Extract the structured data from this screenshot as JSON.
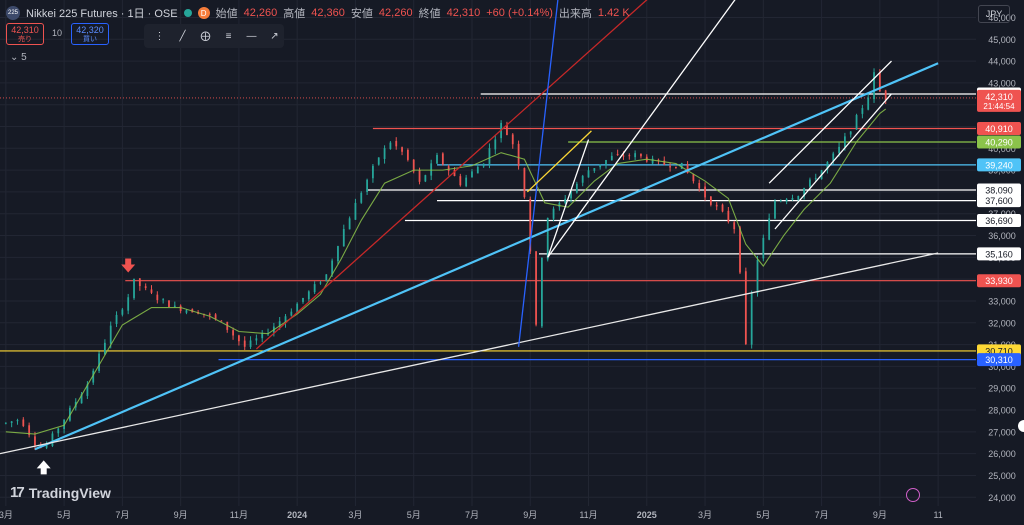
{
  "header": {
    "title": "Nikkei 225 Futures · 1日 · OSE",
    "logo_text": "225",
    "d_badge": "D",
    "open_label": "始値",
    "open_value": "42,260",
    "high_label": "高値",
    "high_value": "42,360",
    "low_label": "安値",
    "low_value": "42,260",
    "close_label": "終値",
    "close_value": "42,310",
    "change": "+60 (+0.14%)",
    "volume_label": "出来高",
    "volume_value": "1.42 K"
  },
  "trade": {
    "sell_price": "42,310",
    "sell_label": "売り",
    "spread": "10",
    "buy_price": "42,320",
    "buy_label": "買い",
    "indicator_count": "5"
  },
  "currency": "JPY",
  "brand": "TradingView",
  "colors": {
    "background": "#161a25",
    "up": "#26a69a",
    "down": "#ef5350",
    "grid": "#222633"
  },
  "chart_data": {
    "type": "candlestick",
    "y_axis": {
      "ticks": [
        24000,
        25000,
        26000,
        27000,
        28000,
        29000,
        30000,
        31000,
        32000,
        33000,
        34000,
        35000,
        36000,
        37000,
        38000,
        39000,
        40000,
        41000,
        42000,
        43000,
        44000,
        45000,
        46000
      ],
      "tick_labels": [
        "24,000",
        "25,000",
        "26,000",
        "27,000",
        "28,000",
        "29,000",
        "30,000",
        "31,000",
        "32,000",
        "33,000",
        "34,000",
        "35,000",
        "36,000",
        "37,000",
        "38,000",
        "39,000",
        "40,000",
        "41,000",
        "42,000",
        "43,000",
        "44,000",
        "45,000",
        "46,000"
      ],
      "range": [
        23600,
        46800
      ]
    },
    "x_axis": {
      "ticks": [
        0,
        2,
        4,
        6,
        8,
        10,
        12,
        14,
        16,
        18,
        20,
        22,
        24,
        26,
        28,
        30,
        32
      ],
      "tick_labels": [
        "3月",
        "5月",
        "7月",
        "9月",
        "11月",
        "2024",
        "3月",
        "5月",
        "7月",
        "9月",
        "11月",
        "2025",
        "3月",
        "5月",
        "7月",
        "9月",
        "11"
      ],
      "range": [
        -0.2,
        33.3
      ]
    },
    "price_path": [
      [
        0,
        27400
      ],
      [
        0.5,
        27600
      ],
      [
        1,
        26500
      ],
      [
        1.3,
        26200
      ],
      [
        2,
        27600
      ],
      [
        2.8,
        29200
      ],
      [
        3.6,
        31800
      ],
      [
        4.2,
        33200
      ],
      [
        4.4,
        33900
      ],
      [
        5.1,
        33200
      ],
      [
        5.8,
        32700
      ],
      [
        6.7,
        32500
      ],
      [
        7.4,
        32000
      ],
      [
        8.2,
        30900
      ],
      [
        8.8,
        31400
      ],
      [
        9.5,
        32200
      ],
      [
        10.4,
        33400
      ],
      [
        11,
        34200
      ],
      [
        11.5,
        36000
      ],
      [
        12.3,
        38300
      ],
      [
        12.8,
        39600
      ],
      [
        13.2,
        40300
      ],
      [
        13.7,
        39700
      ],
      [
        14.2,
        38400
      ],
      [
        14.8,
        39600
      ],
      [
        15.6,
        38400
      ],
      [
        16.4,
        39400
      ],
      [
        17,
        41100
      ],
      [
        17.5,
        40000
      ],
      [
        17.9,
        37100
      ],
      [
        18.2,
        31800
      ],
      [
        18.5,
        36700
      ],
      [
        19.3,
        37900
      ],
      [
        20,
        39000
      ],
      [
        20.8,
        39600
      ],
      [
        21.6,
        39700
      ],
      [
        22.4,
        39300
      ],
      [
        23.2,
        39200
      ],
      [
        24,
        37800
      ],
      [
        24.6,
        37000
      ],
      [
        25.1,
        36200
      ],
      [
        25.4,
        30900
      ],
      [
        25.7,
        34500
      ],
      [
        26.4,
        37600
      ],
      [
        27.2,
        37900
      ],
      [
        28,
        39000
      ],
      [
        28.6,
        40000
      ],
      [
        29,
        40900
      ],
      [
        29.6,
        42400
      ],
      [
        29.8,
        43400
      ],
      [
        30,
        42600
      ],
      [
        30.2,
        42300
      ]
    ],
    "moving_average": [
      [
        0,
        27000
      ],
      [
        1,
        26900
      ],
      [
        2,
        27300
      ],
      [
        3,
        29600
      ],
      [
        4,
        31900
      ],
      [
        5,
        32700
      ],
      [
        6,
        32700
      ],
      [
        7,
        32300
      ],
      [
        8,
        31600
      ],
      [
        9,
        31500
      ],
      [
        10,
        32400
      ],
      [
        10.8,
        33300
      ],
      [
        11.5,
        34900
      ],
      [
        12.2,
        36700
      ],
      [
        13,
        38400
      ],
      [
        14,
        39000
      ],
      [
        15,
        39000
      ],
      [
        16,
        39200
      ],
      [
        17,
        39800
      ],
      [
        17.8,
        39500
      ],
      [
        18.5,
        37500
      ],
      [
        19.3,
        37300
      ],
      [
        20.2,
        38500
      ],
      [
        21,
        39300
      ],
      [
        22,
        39500
      ],
      [
        23,
        39300
      ],
      [
        24,
        38500
      ],
      [
        24.8,
        37700
      ],
      [
        25.4,
        35600
      ],
      [
        26,
        34600
      ],
      [
        26.7,
        36000
      ],
      [
        27.4,
        37200
      ],
      [
        28.3,
        38400
      ],
      [
        29.2,
        40300
      ],
      [
        30,
        41600
      ],
      [
        30.2,
        41800
      ]
    ],
    "horizontal_levels": [
      {
        "label": "42,490",
        "value": 42490,
        "color": "#ffffff",
        "start": 16.3
      },
      {
        "label": "40,910",
        "value": 40910,
        "color": "#ef5350",
        "start": 12.6
      },
      {
        "label": "40,290",
        "value": 40290,
        "color": "#8bc34a",
        "start": 19.3
      },
      {
        "label": "39,240",
        "value": 39240,
        "color": "#4fc3f7",
        "start": 14.8
      },
      {
        "label": "38,090",
        "value": 38090,
        "color": "#ffffff",
        "start": 12.4
      },
      {
        "label": "37,600",
        "value": 37600,
        "color": "#ffffff",
        "start": 14.8
      },
      {
        "label": "36,690",
        "value": 36690,
        "color": "#ffffff",
        "start": 13.7
      },
      {
        "label": "35,160",
        "value": 35160,
        "color": "#ffffff",
        "start": 18.3
      },
      {
        "label": "33,930",
        "value": 33930,
        "color": "#ef5350",
        "start": 4.1
      },
      {
        "label": "30,710",
        "value": 30710,
        "color": "#fdd835",
        "start": -0.2
      },
      {
        "label": "30,310",
        "value": 30310,
        "color": "#2962ff",
        "start": 7.3
      }
    ],
    "last_price": {
      "label": "42,310",
      "value": 42310,
      "countdown": "21:44:54",
      "color": "#ef5350"
    },
    "trendlines": [
      {
        "color": "#4fc3f7",
        "width": 2.2,
        "points": [
          [
            1,
            26200
          ],
          [
            32,
            43900
          ]
        ]
      },
      {
        "color": "#e8e8e8",
        "width": 1.3,
        "points": [
          [
            -0.2,
            26000
          ],
          [
            32,
            35200
          ]
        ]
      },
      {
        "color": "#c62828",
        "width": 1.3,
        "points": [
          [
            8.6,
            30800
          ],
          [
            23.5,
            48600
          ]
        ]
      },
      {
        "color": "#2962ff",
        "width": 1.3,
        "points": [
          [
            17.6,
            30900
          ],
          [
            19.1,
            48600
          ]
        ]
      },
      {
        "color": "#ffffff",
        "width": 1.3,
        "points": [
          [
            18.6,
            35000
          ],
          [
            26,
            48600
          ]
        ]
      },
      {
        "color": "#fdd835",
        "width": 1.3,
        "points": [
          [
            17.9,
            38000
          ],
          [
            20.1,
            40800
          ]
        ]
      },
      {
        "color": "#ffffff",
        "width": 1.3,
        "points": [
          [
            18.6,
            35000
          ],
          [
            20,
            40400
          ]
        ]
      },
      {
        "color": "#ffffff",
        "width": 1.3,
        "points": [
          [
            26.4,
            36300
          ],
          [
            30.4,
            42500
          ]
        ]
      },
      {
        "color": "#ffffff",
        "width": 1.3,
        "points": [
          [
            26.2,
            38400
          ],
          [
            30.4,
            44000
          ]
        ]
      }
    ],
    "arrows": [
      {
        "value": 34400,
        "at": 4.2,
        "direction": "down",
        "color": "#ef5350"
      },
      {
        "value": 25600,
        "at": 1.3,
        "direction": "up",
        "color": "#ffffff"
      }
    ]
  }
}
